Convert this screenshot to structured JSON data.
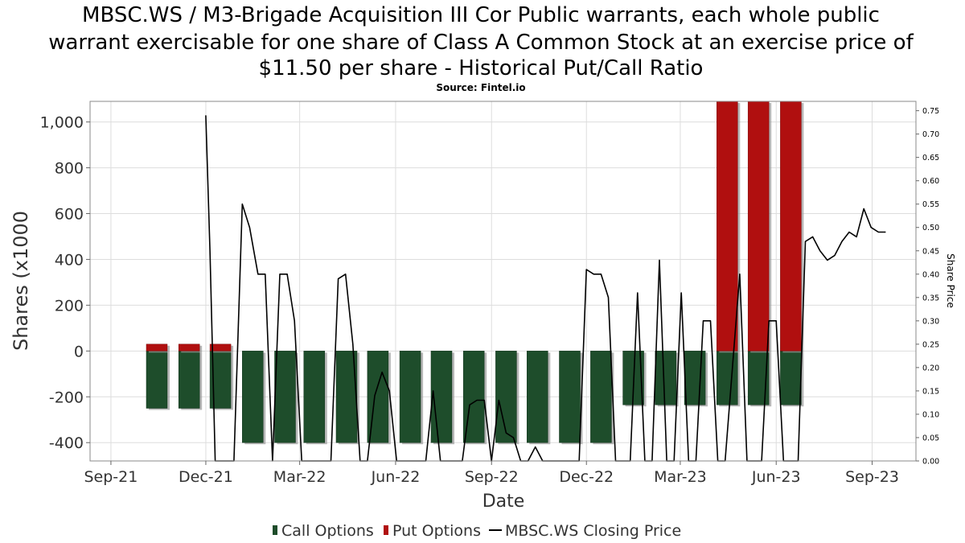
{
  "title_lines": [
    "MBSC.WS / M3-Brigade Acquisition III Cor Public warrants, each whole public",
    "warrant exercisable for one share of Class A Common Stock at an exercise price of",
    "$11.50 per share - Historical Put/Call Ratio"
  ],
  "subtitle": "Source: Fintel.io",
  "chart_data": {
    "type": "bar",
    "xlabel": "Date",
    "ylabel": "Shares (x1000",
    "y2label": "Share Price",
    "x_ticks": [
      "Sep-21",
      "Dec-21",
      "Mar-22",
      "Jun-22",
      "Sep-22",
      "Dec-22",
      "Mar-23",
      "Jun-23",
      "Sep-23"
    ],
    "ylim": [
      -480,
      1090
    ],
    "y_ticks": [
      1000,
      800,
      600,
      400,
      200,
      0,
      -200,
      -400
    ],
    "y_tick_labels": [
      "1,000",
      "800",
      "600",
      "400",
      "200",
      "0",
      "-200",
      "-400"
    ],
    "y2lim": [
      0.0,
      0.77
    ],
    "y2_ticks": [
      0.75,
      0.7,
      0.65,
      0.6,
      0.55,
      0.5,
      0.45,
      0.4,
      0.35,
      0.3,
      0.25,
      0.2,
      0.15,
      0.1,
      0.05,
      0.0
    ],
    "y2_tick_labels": [
      "0.75",
      "0.70",
      "0.65",
      "0.60",
      "0.55",
      "0.50",
      "0.45",
      "0.40",
      "0.35",
      "0.30",
      "0.25",
      "0.20",
      "0.15",
      "0.10",
      "0.05",
      "0.00"
    ],
    "grid": true,
    "legend_position": "bottom",
    "legend": [
      {
        "name": "Call Options",
        "color": "#1e4d2b",
        "kind": "bar"
      },
      {
        "name": "Put Options",
        "color": "#b00f0f",
        "kind": "bar"
      },
      {
        "name": "MBSC.WS Closing Price",
        "color": "#000000",
        "kind": "line"
      }
    ],
    "bars": {
      "dates": [
        "2021-10-15",
        "2021-11-15",
        "2021-12-15",
        "2022-01-15",
        "2022-02-15",
        "2022-03-15",
        "2022-04-15",
        "2022-05-15",
        "2022-06-15",
        "2022-07-15",
        "2022-08-15",
        "2022-09-15",
        "2022-10-15",
        "2022-11-15",
        "2022-12-15",
        "2023-01-15",
        "2023-02-15",
        "2023-03-15",
        "2023-04-15",
        "2023-05-15",
        "2023-06-15"
      ],
      "put": [
        30,
        30,
        30,
        0,
        0,
        0,
        0,
        0,
        0,
        0,
        0,
        0,
        0,
        0,
        0,
        0,
        0,
        0,
        1090,
        1090,
        1090
      ],
      "call": [
        -250,
        -250,
        -250,
        -400,
        -400,
        -400,
        -400,
        -400,
        -400,
        -400,
        -400,
        -400,
        -400,
        -400,
        -400,
        -235,
        -235,
        -235,
        -235,
        -235,
        -235
      ]
    },
    "price_series": {
      "dates": [
        "2021-12-01",
        "2021-12-05",
        "2021-12-10",
        "2021-12-20",
        "2021-12-28",
        "2022-01-05",
        "2022-01-12",
        "2022-01-20",
        "2022-01-27",
        "2022-02-03",
        "2022-02-10",
        "2022-02-17",
        "2022-02-24",
        "2022-03-03",
        "2022-03-10",
        "2022-03-17",
        "2022-03-24",
        "2022-03-31",
        "2022-04-07",
        "2022-04-14",
        "2022-04-21",
        "2022-04-28",
        "2022-05-05",
        "2022-05-12",
        "2022-05-19",
        "2022-05-26",
        "2022-06-02",
        "2022-06-09",
        "2022-06-16",
        "2022-06-23",
        "2022-06-30",
        "2022-07-07",
        "2022-07-14",
        "2022-07-21",
        "2022-07-28",
        "2022-08-04",
        "2022-08-11",
        "2022-08-18",
        "2022-08-25",
        "2022-09-01",
        "2022-09-08",
        "2022-09-15",
        "2022-09-22",
        "2022-09-29",
        "2022-10-06",
        "2022-10-13",
        "2022-10-20",
        "2022-10-27",
        "2022-11-03",
        "2022-11-10",
        "2022-11-17",
        "2022-11-24",
        "2022-12-01",
        "2022-12-08",
        "2022-12-15",
        "2022-12-22",
        "2022-12-29",
        "2023-01-05",
        "2023-01-12",
        "2023-01-19",
        "2023-01-26",
        "2023-02-02",
        "2023-02-09",
        "2023-02-16",
        "2023-02-23",
        "2023-03-02",
        "2023-03-09",
        "2023-03-16",
        "2023-03-23",
        "2023-03-30",
        "2023-04-06",
        "2023-04-13",
        "2023-04-20",
        "2023-04-27",
        "2023-05-04",
        "2023-05-11",
        "2023-05-18",
        "2023-05-25",
        "2023-06-01",
        "2023-06-08",
        "2023-06-15",
        "2023-06-22",
        "2023-06-29",
        "2023-07-06",
        "2023-07-13",
        "2023-07-20",
        "2023-07-27",
        "2023-08-03",
        "2023-08-10",
        "2023-08-17",
        "2023-08-24",
        "2023-08-31",
        "2023-09-07",
        "2023-09-14"
      ],
      "prices": [
        0.74,
        0.45,
        0.0,
        0.0,
        0.0,
        0.55,
        0.5,
        0.4,
        0.4,
        0.0,
        0.4,
        0.4,
        0.3,
        0.0,
        0.0,
        0.0,
        0.0,
        0.0,
        0.39,
        0.4,
        0.25,
        0.0,
        0.0,
        0.14,
        0.19,
        0.15,
        0.0,
        0.0,
        0.0,
        0.0,
        0.0,
        0.15,
        0.0,
        0.0,
        0.0,
        0.0,
        0.12,
        0.13,
        0.13,
        0.0,
        0.13,
        0.06,
        0.05,
        0.0,
        0.0,
        0.03,
        0.0,
        0.0,
        0.0,
        0.0,
        0.0,
        0.0,
        0.41,
        0.4,
        0.4,
        0.35,
        0.0,
        0.0,
        0.0,
        0.36,
        0.0,
        0.0,
        0.43,
        0.0,
        0.0,
        0.36,
        0.0,
        0.0,
        0.3,
        0.3,
        0.0,
        0.0,
        0.2,
        0.4,
        0.0,
        0.0,
        0.0,
        0.3,
        0.3,
        0.0,
        0.0,
        0.0,
        0.47,
        0.48,
        0.45,
        0.43,
        0.44,
        0.47,
        0.49,
        0.48,
        0.54,
        0.5,
        0.49,
        0.49
      ]
    }
  }
}
